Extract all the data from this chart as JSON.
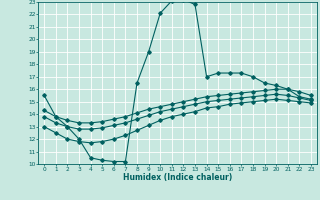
{
  "title": "",
  "xlabel": "Humidex (Indice chaleur)",
  "ylabel": "",
  "bg_color": "#c8e8e0",
  "grid_color": "#ffffff",
  "line_color": "#006060",
  "xlim": [
    -0.5,
    23.5
  ],
  "ylim": [
    10,
    23
  ],
  "xticks": [
    0,
    1,
    2,
    3,
    4,
    5,
    6,
    7,
    8,
    9,
    10,
    11,
    12,
    13,
    14,
    15,
    16,
    17,
    18,
    19,
    20,
    21,
    22,
    23
  ],
  "yticks": [
    10,
    11,
    12,
    13,
    14,
    15,
    16,
    17,
    18,
    19,
    20,
    21,
    22,
    23
  ],
  "line1_x": [
    0,
    1,
    2,
    3,
    4,
    5,
    6,
    7,
    8,
    9,
    10,
    11,
    12,
    13,
    14,
    15,
    16,
    17,
    18,
    19,
    20,
    21,
    22,
    23
  ],
  "line1_y": [
    15.5,
    13.8,
    13.0,
    12.0,
    10.5,
    10.3,
    10.2,
    10.2,
    16.5,
    19.0,
    22.1,
    23.1,
    23.2,
    22.8,
    17.0,
    17.3,
    17.3,
    17.3,
    17.0,
    16.5,
    16.3,
    16.0,
    15.4,
    15.2
  ],
  "line2_x": [
    0,
    1,
    2,
    3,
    4,
    5,
    6,
    7,
    8,
    9,
    10,
    11,
    12,
    13,
    14,
    15,
    16,
    17,
    18,
    19,
    20,
    21,
    22,
    23
  ],
  "line2_y": [
    14.3,
    13.8,
    13.5,
    13.3,
    13.3,
    13.4,
    13.6,
    13.8,
    14.1,
    14.4,
    14.6,
    14.8,
    15.0,
    15.2,
    15.4,
    15.5,
    15.6,
    15.7,
    15.8,
    15.9,
    16.0,
    16.0,
    15.8,
    15.5
  ],
  "line3_x": [
    0,
    1,
    2,
    3,
    4,
    5,
    6,
    7,
    8,
    9,
    10,
    11,
    12,
    13,
    14,
    15,
    16,
    17,
    18,
    19,
    20,
    21,
    22,
    23
  ],
  "line3_y": [
    13.8,
    13.3,
    13.0,
    12.8,
    12.8,
    12.9,
    13.1,
    13.3,
    13.6,
    13.9,
    14.2,
    14.4,
    14.6,
    14.8,
    15.0,
    15.1,
    15.2,
    15.3,
    15.4,
    15.5,
    15.6,
    15.5,
    15.3,
    15.1
  ],
  "line4_x": [
    0,
    1,
    2,
    3,
    4,
    5,
    6,
    7,
    8,
    9,
    10,
    11,
    12,
    13,
    14,
    15,
    16,
    17,
    18,
    19,
    20,
    21,
    22,
    23
  ],
  "line4_y": [
    13.0,
    12.5,
    12.0,
    11.8,
    11.7,
    11.8,
    12.0,
    12.3,
    12.7,
    13.1,
    13.5,
    13.8,
    14.0,
    14.2,
    14.5,
    14.6,
    14.8,
    14.9,
    15.0,
    15.1,
    15.2,
    15.1,
    15.0,
    14.9
  ]
}
